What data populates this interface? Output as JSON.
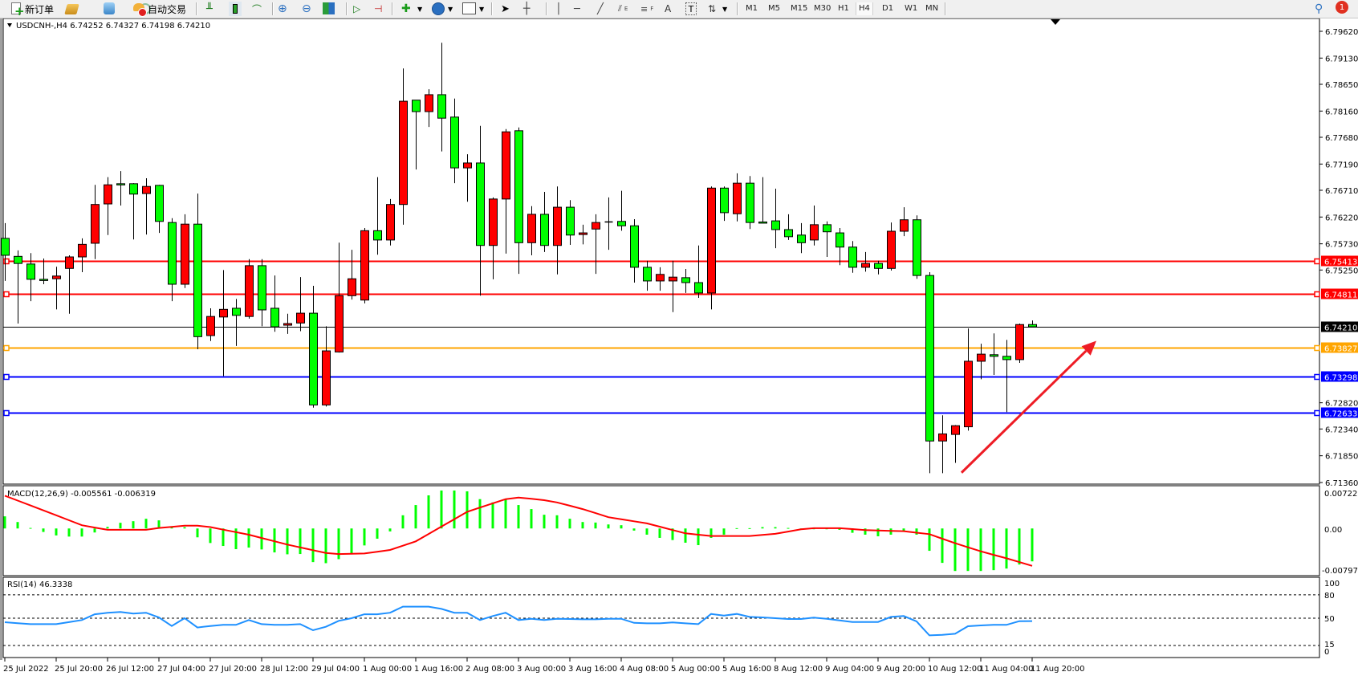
{
  "toolbar": {
    "new_order_label": "新订单",
    "auto_trading_label": "自动交易",
    "icons": [
      "new-order-icon",
      "history-center-icon",
      "market-watch-icon",
      "signals-icon",
      "auto-trading-icon",
      "bar-chart-icon",
      "candlestick-icon",
      "line-chart-icon",
      "zoom-in-icon",
      "zoom-out-icon",
      "tile-windows-icon",
      "auto-scroll-icon",
      "chart-shift-icon",
      "indicators-icon",
      "periods-icon",
      "templates-icon",
      "cursor-icon",
      "crosshair-icon",
      "vertical-line-icon",
      "horizontal-line-icon",
      "trendline-icon",
      "equidistant-channel-icon",
      "fibonacci-icon",
      "text-icon",
      "text-label-icon",
      "arrows-icon",
      "search-icon",
      "notification-icon"
    ],
    "fibo_letter_e": "E",
    "fibo_letter_f": "F",
    "text_tool": "A",
    "label_tool": "T",
    "timeframes": [
      "M1",
      "M5",
      "M15",
      "M30",
      "H1",
      "H4",
      "D1",
      "W1",
      "MN"
    ],
    "active_timeframe": "H4",
    "notification_count": "1"
  },
  "main_pane": {
    "title": "USDCNH-,H4  6.74252 6.74327 6.74198 6.74210"
  },
  "macd_pane": {
    "title": "MACD(12,26,9) -0.005561 -0.006319",
    "axis_labels": [
      "0.007228",
      "0.00",
      "-0.007979"
    ]
  },
  "rsi_pane": {
    "title": "RSI(14) 46.3338",
    "axis_labels": [
      "100",
      "80",
      "50",
      "15",
      "0"
    ]
  },
  "colors": {
    "bull": "#ff0000",
    "bear": "#00ff00",
    "macd_hist": "#00ff00",
    "macd_signal": "#ff0000",
    "rsi": "#1e90ff",
    "arrow": "#ee1c25"
  },
  "chart_data": {
    "type": "candlestick",
    "symbol": "USDCNH-",
    "timeframe": "H4",
    "ylim": [
      6.7136,
      6.7962
    ],
    "price_ticks": [
      "6.79620",
      "6.79130",
      "6.78650",
      "6.78160",
      "6.77680",
      "6.77190",
      "6.76710",
      "6.76220",
      "6.75730",
      "6.75250",
      "6.72820",
      "6.72340",
      "6.71850",
      "6.71360"
    ],
    "candle_fields": [
      "open",
      "high",
      "low",
      "close"
    ],
    "candles": [
      [
        6.7583,
        6.7611,
        6.7505,
        6.7552
      ],
      [
        6.755,
        6.7561,
        6.7427,
        6.7537
      ],
      [
        6.7536,
        6.7556,
        6.7468,
        6.7508
      ],
      [
        6.7508,
        6.7546,
        6.7499,
        6.7507
      ],
      [
        6.7509,
        6.7531,
        6.7453,
        6.7514
      ],
      [
        6.7528,
        6.7552,
        6.7445,
        6.7549
      ],
      [
        6.7549,
        6.7583,
        6.7521,
        6.7572
      ],
      [
        6.7574,
        6.7681,
        6.7545,
        6.7645
      ],
      [
        6.7646,
        6.7695,
        6.7589,
        6.7681
      ],
      [
        6.7683,
        6.7706,
        6.7643,
        6.7682
      ],
      [
        6.7683,
        6.7684,
        6.7581,
        6.7664
      ],
      [
        6.7665,
        6.7693,
        6.759,
        6.7678
      ],
      [
        6.768,
        6.7681,
        6.7593,
        6.7614
      ],
      [
        6.7612,
        6.762,
        6.7468,
        6.7499
      ],
      [
        6.7499,
        6.7627,
        6.7492,
        6.7609
      ],
      [
        6.7609,
        6.7665,
        6.738,
        6.7403
      ],
      [
        6.7405,
        6.7455,
        6.7395,
        6.744
      ],
      [
        6.7439,
        6.7525,
        6.7331,
        6.7453
      ],
      [
        6.7455,
        6.7472,
        6.7386,
        6.7442
      ],
      [
        6.744,
        6.7545,
        6.7436,
        6.7533
      ],
      [
        6.7533,
        6.7545,
        6.7422,
        6.7452
      ],
      [
        6.7455,
        6.7515,
        6.7412,
        6.7421
      ],
      [
        6.7424,
        6.7445,
        6.7408,
        6.7427
      ],
      [
        6.7428,
        6.7512,
        6.7413,
        6.7446
      ],
      [
        6.7446,
        6.7496,
        6.7273,
        6.7278
      ],
      [
        6.7278,
        6.7422,
        6.7275,
        6.7377
      ],
      [
        6.7375,
        6.7575,
        6.7374,
        6.7478
      ],
      [
        6.7478,
        6.7562,
        6.7471,
        6.7509
      ],
      [
        6.747,
        6.7602,
        6.7464,
        6.7597
      ],
      [
        6.7597,
        6.7695,
        6.7553,
        6.758
      ],
      [
        6.758,
        6.7655,
        6.757,
        6.7645
      ],
      [
        6.7645,
        6.7894,
        6.7608,
        6.7834
      ],
      [
        6.7836,
        6.7836,
        6.7709,
        6.7815
      ],
      [
        6.7815,
        6.7856,
        6.7787,
        6.7846
      ],
      [
        6.7846,
        6.7941,
        6.7742,
        6.7803
      ],
      [
        6.7805,
        6.7839,
        6.7684,
        6.7712
      ],
      [
        6.7712,
        6.7737,
        6.765,
        6.7721
      ],
      [
        6.7721,
        6.7789,
        6.7478,
        6.757
      ],
      [
        6.757,
        6.7658,
        6.7508,
        6.7655
      ],
      [
        6.7655,
        6.7783,
        6.7555,
        6.7778
      ],
      [
        6.778,
        6.7786,
        6.7518,
        6.7575
      ],
      [
        6.7575,
        6.7642,
        6.7552,
        6.7627
      ],
      [
        6.7627,
        6.7668,
        6.7558,
        6.757
      ],
      [
        6.757,
        6.7678,
        6.7517,
        6.764
      ],
      [
        6.764,
        6.7653,
        6.7571,
        6.7589
      ],
      [
        6.759,
        6.7608,
        6.7572,
        6.7593
      ],
      [
        6.76,
        6.7627,
        6.7518,
        6.7612
      ],
      [
        6.7613,
        6.7658,
        6.7562,
        6.7613
      ],
      [
        6.7614,
        6.767,
        6.7597,
        6.7606
      ],
      [
        6.7606,
        6.7618,
        6.7502,
        6.753
      ],
      [
        6.753,
        6.7542,
        6.7487,
        6.7505
      ],
      [
        6.7505,
        6.753,
        6.7487,
        6.7517
      ],
      [
        6.7505,
        6.7542,
        6.7448,
        6.7512
      ],
      [
        6.7511,
        6.7527,
        6.7483,
        6.7502
      ],
      [
        6.7502,
        6.757,
        6.7474,
        6.7483
      ],
      [
        6.7483,
        6.7678,
        6.7453,
        6.7675
      ],
      [
        6.7675,
        6.7678,
        6.7615,
        6.763
      ],
      [
        6.7628,
        6.7702,
        6.7614,
        6.7684
      ],
      [
        6.7684,
        6.7697,
        6.76,
        6.7612
      ],
      [
        6.7613,
        6.7695,
        6.7611,
        6.7612
      ],
      [
        6.7615,
        6.7674,
        6.7565,
        6.7599
      ],
      [
        6.7599,
        6.7627,
        6.758,
        6.7586
      ],
      [
        6.7589,
        6.7611,
        6.7556,
        6.7575
      ],
      [
        6.758,
        6.7643,
        6.757,
        6.7608
      ],
      [
        6.7608,
        6.7614,
        6.7549,
        6.7595
      ],
      [
        6.7593,
        6.7602,
        6.7534,
        6.7567
      ],
      [
        6.7567,
        6.7578,
        6.752,
        6.753
      ],
      [
        6.753,
        6.7558,
        6.7522,
        6.7537
      ],
      [
        6.7537,
        6.7542,
        6.7517,
        6.7528
      ],
      [
        6.7528,
        6.7612,
        6.7524,
        6.7596
      ],
      [
        6.7596,
        6.764,
        6.7587,
        6.7617
      ],
      [
        6.7617,
        6.7625,
        6.7509,
        6.7515
      ],
      [
        6.7515,
        6.7521,
        6.7153,
        6.7212
      ],
      [
        6.7212,
        6.7259,
        6.7153,
        6.7225
      ],
      [
        6.7224,
        6.7241,
        6.7172,
        6.724
      ],
      [
        6.7238,
        6.7418,
        6.7231,
        6.7358
      ],
      [
        6.7358,
        6.739,
        6.7325,
        6.7371
      ],
      [
        6.737,
        6.7409,
        6.7333,
        6.7367
      ],
      [
        6.7367,
        6.7397,
        6.7265,
        6.7361
      ],
      [
        6.7361,
        6.7427,
        6.7355,
        6.74252
      ],
      [
        6.74252,
        6.74327,
        6.74198,
        6.7421
      ]
    ],
    "time_labels": [
      "25 Jul 2022",
      "25 Jul 20:00",
      "26 Jul 12:00",
      "27 Jul 04:00",
      "27 Jul 20:00",
      "28 Jul 12:00",
      "29 Jul 04:00",
      "1 Aug 00:00",
      "1 Aug 16:00",
      "2 Aug 08:00",
      "3 Aug 00:00",
      "3 Aug 16:00",
      "4 Aug 08:00",
      "5 Aug 00:00",
      "5 Aug 16:00",
      "8 Aug 12:00",
      "9 Aug 04:00",
      "9 Aug 20:00",
      "10 Aug 12:00",
      "11 Aug 04:00",
      "11 Aug 20:00"
    ],
    "time_label_every_n_bars": 4,
    "current_price": {
      "value": 6.7421,
      "label": "6.74210",
      "color": "#000000"
    },
    "horizontal_lines": [
      {
        "value": 6.75413,
        "label": "6.75413",
        "color": "#ff0000"
      },
      {
        "value": 6.74811,
        "label": "6.74811",
        "color": "#ff0000"
      },
      {
        "value": 6.73827,
        "label": "6.73827",
        "color": "#ffa500"
      },
      {
        "value": 6.73298,
        "label": "6.73298",
        "color": "#0000ff"
      },
      {
        "value": 6.72633,
        "label": "6.72633",
        "color": "#0000ff"
      }
    ],
    "arrow_annotation": {
      "from": {
        "bar": 74.5,
        "price": 6.7154
      },
      "to": {
        "bar": 85,
        "price": 6.73955
      }
    },
    "macd": {
      "ylim": [
        -0.007979,
        0.007228
      ],
      "histogram": [
        0.00205,
        0.00109,
        9e-05,
        -0.00059,
        -0.00118,
        -0.00137,
        -0.00137,
        -0.00068,
        0.00027,
        0.00096,
        0.00123,
        0.00164,
        0.00137,
        0.00032,
        0.00023,
        -0.0015,
        -0.00246,
        -0.00296,
        -0.0035,
        -0.00323,
        -0.00355,
        -0.00405,
        -0.00437,
        -0.00432,
        -0.00569,
        -0.00587,
        -0.00519,
        -0.00423,
        -0.00287,
        -0.00173,
        -0.0005,
        0.00223,
        0.00396,
        0.0056,
        0.00642,
        0.00642,
        0.00628,
        0.00496,
        0.00441,
        0.00496,
        0.00396,
        0.00328,
        0.00232,
        0.00223,
        0.00164,
        0.00109,
        0.001,
        0.00068,
        0.00055,
        -0.00036,
        -0.00105,
        -0.00159,
        -0.00196,
        -0.00241,
        -0.00282,
        -0.00159,
        -0.00105,
        5e-05,
        5e-05,
        0.00023,
        0.00023,
        9e-05,
        -5e-05,
        0,
        -0.00014,
        -0.00023,
        -0.00073,
        -0.00105,
        -0.00132,
        -0.00105,
        -0.0005,
        -0.00105,
        -0.00378,
        -0.00582,
        -0.00719,
        -0.00719,
        -0.00719,
        -0.00705,
        -0.00678,
        -0.0061,
        -0.005561
      ],
      "signal": [
        0.00555,
        0.00472,
        0.00389,
        0.00306,
        0.00223,
        0.00139,
        0.00055,
        0.00016,
        -0.00023,
        -0.00023,
        -0.00023,
        -0.00023,
        9e-05,
        0.00028,
        0.00046,
        0.00046,
        0.00023,
        -0.0002,
        -0.00062,
        -0.00105,
        -0.00161,
        -0.00217,
        -0.00273,
        -0.0032,
        -0.00367,
        -0.00414,
        -0.00432,
        -0.00428,
        -0.00423,
        -0.00394,
        -0.00364,
        -0.00291,
        -0.00218,
        -0.00093,
        0.00032,
        0.00157,
        0.00282,
        0.00353,
        0.00425,
        0.00496,
        0.00523,
        0.00501,
        0.00478,
        0.00441,
        0.00385,
        0.00328,
        0.0026,
        0.00191,
        0.00156,
        0.00121,
        0.00086,
        0.0003,
        -0.00027,
        -0.00082,
        -0.00105,
        -0.00127,
        -0.00127,
        -0.00127,
        -0.00127,
        -0.00109,
        -0.00091,
        -0.00053,
        -0.00014,
        5e-05,
        5e-05,
        5e-05,
        -0.00011,
        -0.00027,
        -0.00033,
        -0.0004,
        -0.00046,
        -0.00071,
        -0.00096,
        -0.00173,
        -0.0025,
        -0.00319,
        -0.00387,
        -0.00446,
        -0.00505,
        -0.00568,
        -0.006319
      ]
    },
    "rsi": {
      "ylim": [
        0,
        100
      ],
      "levels": [
        80,
        50,
        15
      ],
      "values": [
        44.8,
        43.5,
        42.4,
        42.4,
        42.4,
        45,
        47.6,
        55,
        56.9,
        58,
        56,
        57,
        51,
        40,
        50,
        38,
        40,
        41.4,
        41.4,
        47.6,
        42.4,
        41.4,
        41.4,
        42.4,
        34.5,
        39,
        46.6,
        50,
        55,
        55,
        57,
        64.8,
        64.8,
        64.8,
        62,
        57,
        57,
        47.6,
        52.8,
        57,
        47.6,
        49.3,
        47.6,
        49.3,
        49,
        48.6,
        48.6,
        49.3,
        49.3,
        44,
        43.4,
        43.4,
        44.5,
        43.4,
        42.4,
        55.5,
        53.4,
        55.5,
        51.7,
        51,
        50,
        49,
        49,
        50.7,
        49.3,
        47.2,
        45.2,
        45.2,
        45.2,
        51.7,
        52.8,
        45.9,
        27.9,
        28.6,
        30,
        39.7,
        40.7,
        41.4,
        41.4,
        46.2,
        46.3338
      ]
    }
  }
}
